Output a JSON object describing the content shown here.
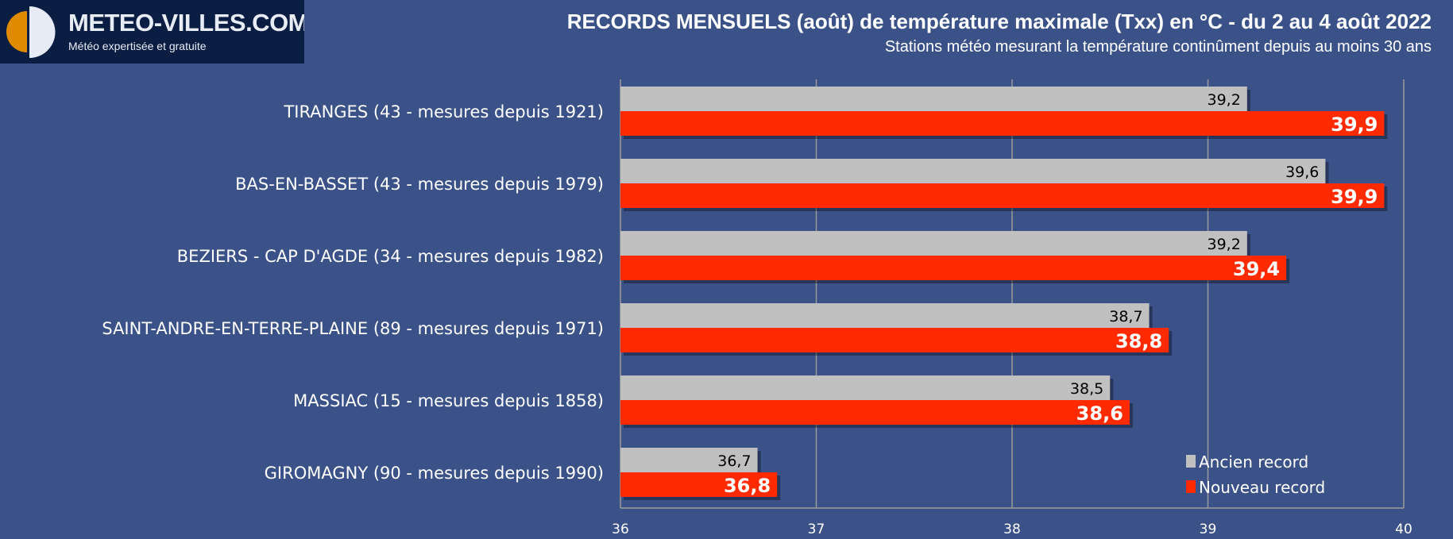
{
  "logo": {
    "name": "METEO-VILLES.COM",
    "tagline": "Météo expertisée et gratuite"
  },
  "chart_data": {
    "type": "bar",
    "orientation": "horizontal",
    "title": "RECORDS MENSUELS (août) de température maximale (Txx) en °C - du 2 au 4 août 2022",
    "subtitle": "Stations météo mesurant la température continûment depuis au moins 30 ans",
    "categories": [
      "TIRANGES (43 - mesures depuis 1921)",
      "BAS-EN-BASSET (43 - mesures depuis 1979)",
      "BEZIERS - CAP D'AGDE (34 - mesures depuis 1982)",
      "SAINT-ANDRE-EN-TERRE-PLAINE (89 - mesures depuis 1971)",
      "MASSIAC (15 - mesures depuis 1858)",
      "GIROMAGNY (90 - mesures depuis 1990)"
    ],
    "series": [
      {
        "name": "Ancien record",
        "color": "#c0c0c0",
        "values": [
          39.2,
          39.6,
          39.2,
          38.7,
          38.5,
          36.7
        ],
        "labels": [
          "39,2",
          "39,6",
          "39,2",
          "38,7",
          "38,5",
          "36,7"
        ]
      },
      {
        "name": "Nouveau record",
        "color": "#ff2a00",
        "values": [
          39.9,
          39.9,
          39.4,
          38.8,
          38.6,
          36.8
        ],
        "labels": [
          "39,9",
          "39,9",
          "39,4",
          "38,8",
          "38,6",
          "36,8"
        ]
      }
    ],
    "xlim": [
      36,
      40
    ],
    "xticks": [
      "36",
      "37",
      "38",
      "39",
      "40"
    ],
    "grid": true,
    "legend": "bottom-right"
  }
}
